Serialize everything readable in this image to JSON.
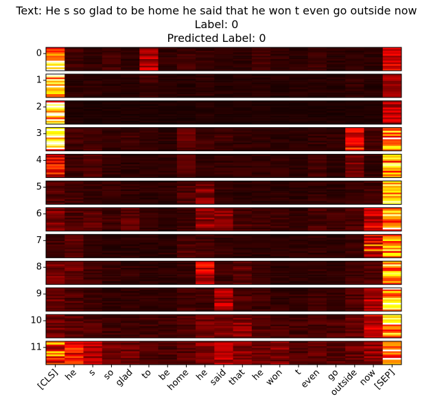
{
  "chart_data": {
    "type": "heatmap",
    "title_lines": [
      "Text: He s so glad to be home he said that he won t even go outside now",
      "Label: 0",
      "Predicted Label: 0"
    ],
    "layers": [
      "0",
      "1",
      "2",
      "3",
      "4",
      "5",
      "6",
      "7",
      "8",
      "9",
      "10",
      "11"
    ],
    "tokens": [
      "[CLS]",
      "he",
      "s",
      "so",
      "glad",
      "to",
      "be",
      "home",
      "he",
      "said",
      "that",
      "he",
      "won",
      "t",
      "even",
      "go",
      "outside",
      "now",
      "[SEP]"
    ],
    "colormap": "hot",
    "value_range": [
      0,
      1
    ],
    "attention_summary": [
      [
        0.95,
        0.08,
        0.06,
        0.08,
        0.05,
        0.25,
        0.06,
        0.08,
        0.06,
        0.05,
        0.05,
        0.08,
        0.06,
        0.05,
        0.08,
        0.05,
        0.05,
        0.05,
        0.3
      ],
      [
        0.98,
        0.05,
        0.05,
        0.04,
        0.04,
        0.08,
        0.04,
        0.04,
        0.05,
        0.04,
        0.04,
        0.04,
        0.04,
        0.04,
        0.04,
        0.04,
        0.06,
        0.04,
        0.2
      ],
      [
        1.0,
        0.03,
        0.03,
        0.03,
        0.03,
        0.03,
        0.03,
        0.03,
        0.04,
        0.03,
        0.03,
        0.03,
        0.03,
        0.03,
        0.03,
        0.03,
        0.03,
        0.03,
        0.25
      ],
      [
        0.95,
        0.08,
        0.1,
        0.06,
        0.08,
        0.06,
        0.05,
        0.12,
        0.08,
        0.08,
        0.06,
        0.06,
        0.05,
        0.05,
        0.06,
        0.06,
        0.35,
        0.08,
        0.85
      ],
      [
        0.5,
        0.08,
        0.1,
        0.06,
        0.05,
        0.05,
        0.05,
        0.1,
        0.06,
        0.06,
        0.06,
        0.06,
        0.06,
        0.05,
        0.08,
        0.05,
        0.15,
        0.06,
        0.95
      ],
      [
        0.1,
        0.08,
        0.06,
        0.06,
        0.06,
        0.05,
        0.05,
        0.1,
        0.18,
        0.06,
        0.05,
        0.05,
        0.05,
        0.05,
        0.06,
        0.05,
        0.06,
        0.08,
        0.95
      ],
      [
        0.18,
        0.1,
        0.12,
        0.08,
        0.12,
        0.06,
        0.06,
        0.08,
        0.2,
        0.18,
        0.1,
        0.08,
        0.08,
        0.06,
        0.1,
        0.08,
        0.1,
        0.3,
        0.95
      ],
      [
        0.08,
        0.12,
        0.05,
        0.05,
        0.05,
        0.05,
        0.05,
        0.1,
        0.08,
        0.06,
        0.05,
        0.05,
        0.05,
        0.05,
        0.06,
        0.05,
        0.08,
        0.45,
        0.98
      ],
      [
        0.15,
        0.14,
        0.08,
        0.06,
        0.06,
        0.05,
        0.05,
        0.06,
        0.3,
        0.08,
        0.12,
        0.06,
        0.05,
        0.05,
        0.06,
        0.05,
        0.08,
        0.12,
        0.95
      ],
      [
        0.15,
        0.1,
        0.08,
        0.06,
        0.06,
        0.06,
        0.06,
        0.08,
        0.08,
        0.25,
        0.1,
        0.08,
        0.06,
        0.06,
        0.08,
        0.06,
        0.1,
        0.25,
        0.92
      ],
      [
        0.15,
        0.12,
        0.1,
        0.08,
        0.08,
        0.08,
        0.08,
        0.1,
        0.15,
        0.15,
        0.18,
        0.1,
        0.1,
        0.08,
        0.1,
        0.1,
        0.15,
        0.3,
        0.9
      ],
      [
        0.55,
        0.35,
        0.25,
        0.15,
        0.15,
        0.1,
        0.1,
        0.12,
        0.2,
        0.25,
        0.18,
        0.15,
        0.18,
        0.1,
        0.12,
        0.12,
        0.15,
        0.2,
        0.85
      ]
    ]
  }
}
